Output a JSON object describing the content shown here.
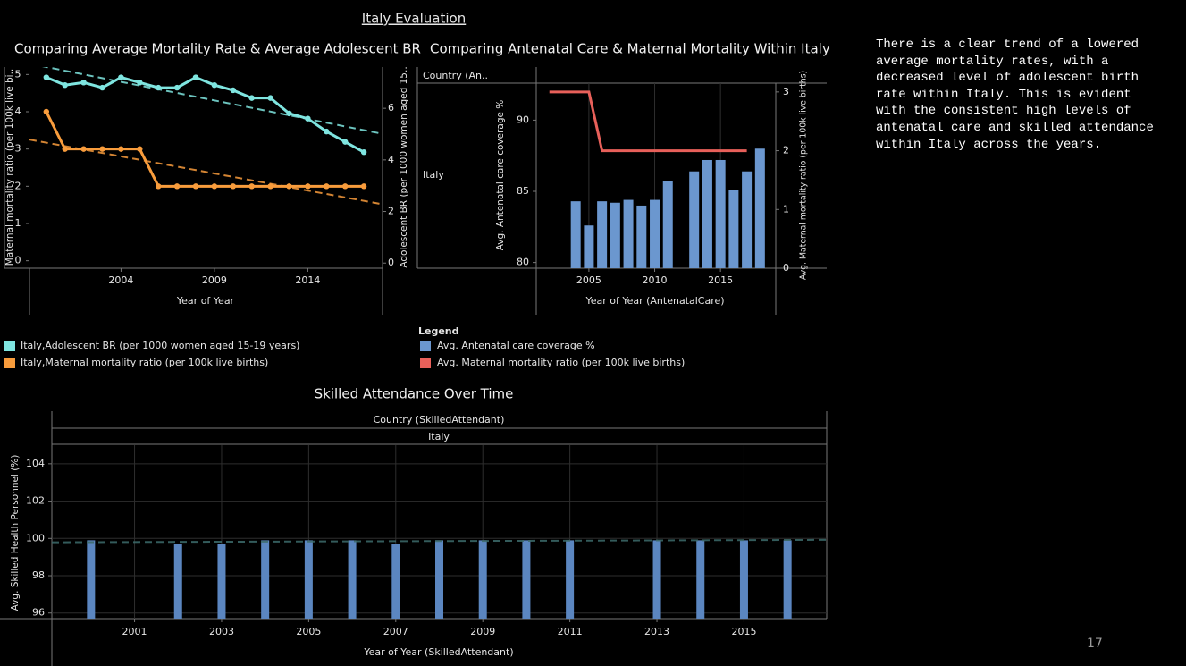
{
  "title": "Italy Evaluation",
  "note": "There is a clear trend of a lowered average mortality rates, with a decreased level of adolescent birth rate within Italy. This is evident with the consistent high levels of antenatal care and skilled attendance within Italy across the years.",
  "page_number": "17",
  "chart_data": [
    {
      "type": "line",
      "title": "Comparing Average Mortality Rate & Average Adolescent BR",
      "x_label": "Year of Year",
      "y_label": "Maternal mortality ratio (per 100k live bi..",
      "y2_label": "Adolescent BR (per 1000 women aged 15..",
      "x": [
        2000,
        2001,
        2002,
        2003,
        2004,
        2005,
        2006,
        2007,
        2008,
        2009,
        2010,
        2011,
        2012,
        2013,
        2014,
        2015,
        2016,
        2017
      ],
      "xlim": [
        1999.1,
        2018
      ],
      "xticks": [
        2004,
        2009,
        2014
      ],
      "ylim": [
        -0.2,
        5.2
      ],
      "yticks": [
        0,
        1,
        2,
        3,
        4,
        5
      ],
      "y2lim": [
        -0.2,
        7.6
      ],
      "y2ticks": [
        0,
        2,
        4,
        6
      ],
      "trend_line": true,
      "series": [
        {
          "name": "Italy,Adolescent BR (per 1000 women aged 15-19 years)",
          "color": "#7fe5e0",
          "axis": "y2",
          "values": [
            7.2,
            6.9,
            7.0,
            6.8,
            7.2,
            7.0,
            6.8,
            6.8,
            7.2,
            6.9,
            6.7,
            6.4,
            6.4,
            5.8,
            5.6,
            5.1,
            4.7,
            4.3
          ]
        },
        {
          "name": "Italy,Maternal mortality ratio (per 100k live births)",
          "color": "#f89c3c",
          "axis": "y",
          "values": [
            4,
            3,
            3,
            3,
            3,
            3,
            2,
            2,
            2,
            2,
            2,
            2,
            2,
            2,
            2,
            2,
            2,
            2
          ]
        }
      ]
    },
    {
      "type": "combo",
      "title": "Comparing Antenatal Care & Maternal Mortality Within Italy",
      "header": "Country (An..",
      "row_label": "Italy",
      "x_label": "Year of Year (AntenatalCare)",
      "y_label": "Avg. Antenatal care coverage %",
      "y2_label": "Avg. Maternal mortality ratio (per 100k live births)",
      "legend_title": "Legend",
      "x": [
        2002,
        2003,
        2004,
        2005,
        2006,
        2007,
        2008,
        2009,
        2010,
        2011,
        2012,
        2013,
        2014,
        2015,
        2016,
        2017,
        2018
      ],
      "xlim": [
        2001,
        2019.2
      ],
      "xticks": [
        2005,
        2010,
        2015
      ],
      "ylim": [
        79.6,
        92.6
      ],
      "yticks": [
        80,
        85,
        90
      ],
      "y2lim": [
        0,
        3.15
      ],
      "y2ticks": [
        0,
        1,
        2,
        3
      ],
      "series": [
        {
          "name": "Avg. Antenatal care coverage %",
          "mark": "bar",
          "color": "#6b97cf",
          "axis": "y",
          "values": [
            null,
            null,
            84.3,
            82.6,
            84.3,
            84.2,
            84.4,
            84.0,
            84.4,
            85.7,
            null,
            86.4,
            87.2,
            87.2,
            85.1,
            86.4,
            88.0
          ]
        },
        {
          "name": "Avg. Maternal mortality ratio (per 100k live births)",
          "mark": "line",
          "color": "#e8605a",
          "axis": "y2",
          "values": [
            3,
            3,
            3,
            3,
            2,
            2,
            2,
            2,
            2,
            2,
            2,
            2,
            2,
            2,
            2,
            2,
            null
          ]
        }
      ]
    },
    {
      "type": "bar",
      "title": "Skilled Attendance Over Time",
      "header": "Country (SkilledAttendant)",
      "row_label": "Italy",
      "x_label": "Year of Year (SkilledAttendant)",
      "y_label": "Avg. Skilled Health Personnel (%)",
      "x": [
        2000,
        2001,
        2002,
        2003,
        2004,
        2005,
        2006,
        2007,
        2008,
        2009,
        2010,
        2011,
        2012,
        2013,
        2014,
        2015,
        2016
      ],
      "values": [
        99.9,
        null,
        99.7,
        99.7,
        99.9,
        99.9,
        99.9,
        99.7,
        99.9,
        99.9,
        99.9,
        99.9,
        null,
        99.9,
        99.9,
        99.9,
        99.9
      ],
      "color": "#5b86c0",
      "xlim": [
        1999.1,
        2016.9
      ],
      "xticks": [
        2001,
        2003,
        2005,
        2007,
        2009,
        2011,
        2013,
        2015
      ],
      "ylim": [
        95.7,
        105
      ],
      "yticks": [
        96,
        98,
        100,
        102,
        104
      ],
      "grid": true,
      "trend_line": true,
      "trend_color": "#3d6b6b"
    }
  ]
}
